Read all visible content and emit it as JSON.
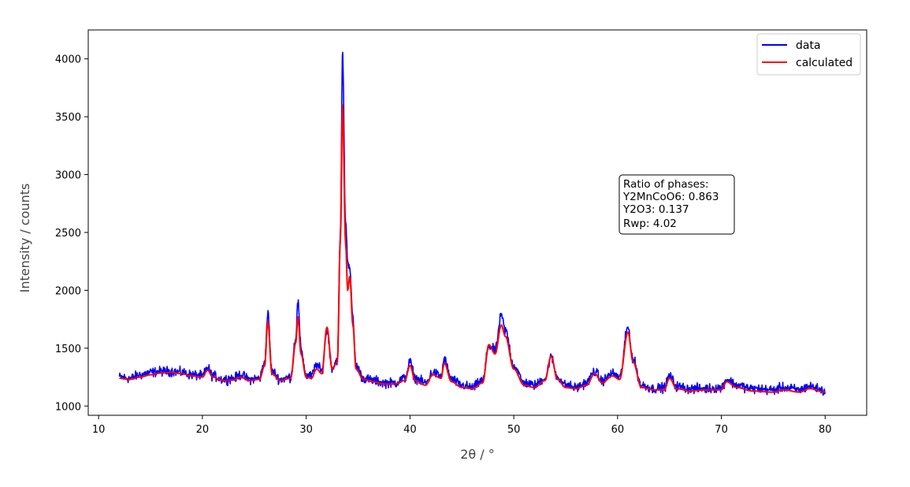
{
  "chart_data": {
    "type": "line",
    "xlabel": "2θ / °",
    "ylabel": "Intensity / counts",
    "xlim": [
      9,
      84
    ],
    "ylim": [
      920,
      4250
    ],
    "xticks": [
      10,
      20,
      30,
      40,
      50,
      60,
      70,
      80
    ],
    "yticks": [
      1000,
      1500,
      2000,
      2500,
      3000,
      3500,
      4000
    ],
    "grid": false,
    "legend_position": "top-right",
    "series": [
      {
        "name": "data",
        "color": "#0000ff",
        "noise_amplitude": 45,
        "x": [
          12.0,
          13.0,
          14.0,
          15.0,
          16.0,
          17.0,
          18.0,
          19.0,
          20.0,
          20.5,
          21.0,
          22.0,
          23.0,
          23.7,
          24.5,
          25.5,
          26.0,
          26.3,
          26.7,
          27.5,
          28.5,
          29.0,
          29.2,
          29.5,
          30.0,
          30.5,
          31.0,
          31.5,
          32.0,
          32.5,
          33.0,
          33.3,
          33.5,
          33.8,
          34.0,
          34.2,
          34.5,
          34.8,
          35.5,
          36.5,
          37.5,
          38.5,
          39.5,
          40.0,
          40.5,
          41.5,
          42.2,
          43.0,
          43.3,
          44.0,
          45.0,
          46.0,
          47.0,
          47.6,
          48.2,
          48.8,
          49.2,
          50.0,
          51.0,
          52.0,
          53.0,
          53.6,
          54.2,
          55.0,
          56.0,
          57.0,
          57.8,
          58.5,
          59.5,
          60.2,
          61.0,
          61.5,
          62.3,
          63.5,
          64.5,
          65.0,
          65.7,
          67.0,
          68.5,
          70.0,
          70.5,
          71.5,
          73.0,
          75.0,
          76.0,
          77.5,
          78.5,
          80.0
        ],
        "y": [
          1250,
          1240,
          1270,
          1290,
          1300,
          1300,
          1290,
          1270,
          1260,
          1330,
          1260,
          1230,
          1240,
          1270,
          1230,
          1240,
          1380,
          1800,
          1300,
          1230,
          1250,
          1600,
          1900,
          1500,
          1260,
          1260,
          1360,
          1300,
          1650,
          1330,
          1400,
          2500,
          4050,
          2600,
          2250,
          2200,
          1750,
          1350,
          1240,
          1220,
          1200,
          1200,
          1240,
          1380,
          1240,
          1200,
          1290,
          1260,
          1400,
          1230,
          1180,
          1160,
          1220,
          1520,
          1480,
          1780,
          1650,
          1350,
          1200,
          1180,
          1240,
          1420,
          1250,
          1180,
          1160,
          1200,
          1300,
          1220,
          1280,
          1250,
          1680,
          1400,
          1180,
          1150,
          1160,
          1260,
          1170,
          1150,
          1150,
          1160,
          1230,
          1180,
          1150,
          1140,
          1160,
          1140,
          1170,
          1130
        ]
      },
      {
        "name": "calculated",
        "color": "#ff0000",
        "x": [
          12.0,
          13.0,
          14.0,
          15.0,
          16.0,
          17.0,
          18.0,
          19.0,
          20.0,
          20.5,
          21.0,
          22.0,
          23.0,
          23.7,
          24.5,
          25.5,
          26.0,
          26.3,
          26.7,
          27.5,
          28.5,
          29.0,
          29.2,
          29.5,
          30.0,
          30.5,
          31.0,
          31.5,
          32.0,
          32.5,
          33.0,
          33.3,
          33.5,
          33.8,
          34.0,
          34.2,
          34.5,
          34.8,
          35.5,
          36.5,
          37.5,
          38.5,
          39.5,
          40.0,
          40.5,
          41.5,
          42.2,
          43.0,
          43.3,
          44.0,
          45.0,
          46.0,
          47.0,
          47.6,
          48.2,
          48.8,
          49.2,
          50.0,
          51.0,
          52.0,
          53.0,
          53.6,
          54.2,
          55.0,
          56.0,
          57.0,
          57.8,
          58.5,
          59.5,
          60.2,
          61.0,
          61.5,
          62.3,
          63.5,
          64.5,
          65.0,
          65.7,
          67.0,
          68.5,
          70.0,
          70.5,
          71.5,
          73.0,
          75.0,
          76.0,
          77.5,
          78.5,
          80.0
        ],
        "y": [
          1240,
          1230,
          1250,
          1270,
          1285,
          1290,
          1280,
          1260,
          1250,
          1310,
          1250,
          1220,
          1225,
          1250,
          1220,
          1230,
          1350,
          1730,
          1280,
          1220,
          1240,
          1550,
          1770,
          1450,
          1250,
          1240,
          1320,
          1280,
          1680,
          1320,
          1380,
          2450,
          3600,
          2400,
          2000,
          2120,
          1700,
          1320,
          1230,
          1210,
          1190,
          1190,
          1220,
          1350,
          1220,
          1180,
          1270,
          1240,
          1370,
          1210,
          1160,
          1150,
          1200,
          1530,
          1450,
          1700,
          1600,
          1320,
          1180,
          1160,
          1220,
          1430,
          1230,
          1160,
          1150,
          1180,
          1280,
          1200,
          1260,
          1230,
          1640,
          1380,
          1160,
          1140,
          1140,
          1240,
          1150,
          1130,
          1140,
          1140,
          1210,
          1160,
          1130,
          1120,
          1140,
          1120,
          1150,
          1120
        ]
      }
    ],
    "annotation": {
      "lines": [
        "Ratio of phases:",
        "Y2MnCoO6: 0.863",
        "Y2O3: 0.137",
        "Rwp: 4.02"
      ],
      "anchor_x": 60.0,
      "anchor_y": 2990
    }
  }
}
